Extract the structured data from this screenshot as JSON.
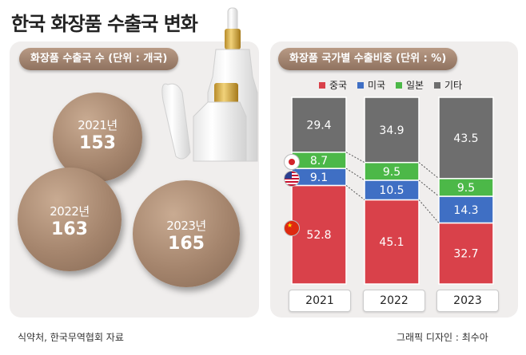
{
  "title": "한국 화장품 수출국 변화",
  "left_panel": {
    "header": "화장품 수출국 수 (단위 : 개국)",
    "bubbles": [
      {
        "year": "2021년",
        "value": "153"
      },
      {
        "year": "2022년",
        "value": "163"
      },
      {
        "year": "2023년",
        "value": "165"
      }
    ]
  },
  "right_panel": {
    "header": "화장품 국가별 수출비중 (단위 : %)"
  },
  "chart_data": [
    {
      "type": "bar",
      "title": "화장품 수출국 수",
      "unit": "개국",
      "categories": [
        "2021년",
        "2022년",
        "2023년"
      ],
      "values": [
        153,
        163,
        165
      ]
    },
    {
      "type": "bar",
      "stacked": true,
      "title": "화장품 국가별 수출비중",
      "unit": "%",
      "categories": [
        "2021",
        "2022",
        "2023"
      ],
      "series": [
        {
          "name": "중국",
          "color": "#d9414a",
          "values": [
            52.8,
            45.1,
            32.7
          ]
        },
        {
          "name": "미국",
          "color": "#3f6fc4",
          "values": [
            9.1,
            10.5,
            14.3
          ]
        },
        {
          "name": "일본",
          "color": "#4cb848",
          "values": [
            8.7,
            9.5,
            9.5
          ]
        },
        {
          "name": "기타",
          "color": "#6e6e6e",
          "values": [
            29.4,
            34.9,
            43.5
          ]
        }
      ],
      "legend": "top"
    }
  ],
  "footer": {
    "source": "식약처, 한국무역협회 자료",
    "credit": "그래픽 디자인 : 최수아"
  }
}
